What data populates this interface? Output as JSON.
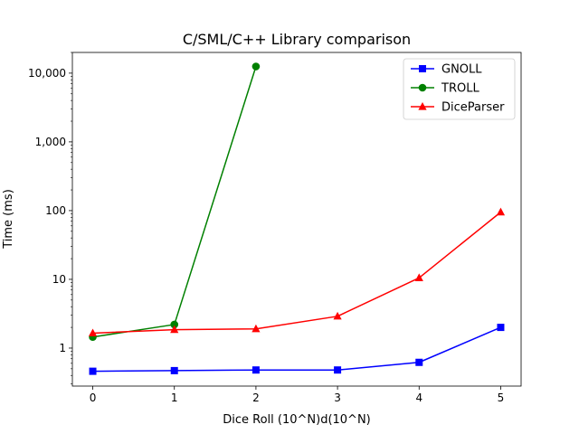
{
  "chart_data": {
    "type": "line",
    "title": "C/SML/C++ Library comparison",
    "xlabel": "Dice Roll (10^N)d(10^N)",
    "ylabel": "Time (ms)",
    "xlim": [
      -0.25,
      5.25
    ],
    "ylim": [
      0.28,
      20000
    ],
    "yscale": "log",
    "x_ticks": [
      0,
      1,
      2,
      3,
      4,
      5
    ],
    "x_tick_labels": [
      "0",
      "1",
      "2",
      "3",
      "4",
      "5"
    ],
    "y_ticks": [
      1,
      10,
      100,
      1000,
      10000
    ],
    "y_tick_labels": [
      "1",
      "10",
      "100",
      "1,000",
      "10,000"
    ],
    "grid": false,
    "legend_position": "top-right",
    "series": [
      {
        "name": "GNOLL",
        "color": "#0000ff",
        "marker": "square",
        "x": [
          0,
          1,
          2,
          3,
          4,
          5
        ],
        "values": [
          0.46,
          0.47,
          0.48,
          0.48,
          0.62,
          2.0
        ]
      },
      {
        "name": "TROLL",
        "color": "#008000",
        "marker": "circle",
        "x": [
          0,
          1,
          2
        ],
        "values": [
          1.45,
          2.2,
          12500
        ]
      },
      {
        "name": "DiceParser",
        "color": "#ff0000",
        "marker": "triangle",
        "x": [
          0,
          1,
          2,
          3,
          4,
          5
        ],
        "values": [
          1.65,
          1.85,
          1.9,
          2.9,
          10.5,
          95
        ]
      }
    ]
  }
}
